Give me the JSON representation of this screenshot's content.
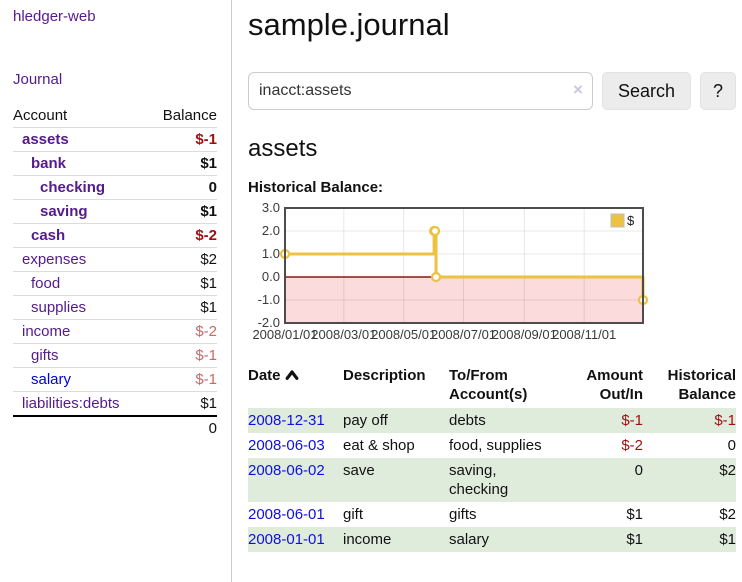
{
  "app": {
    "brand": "hledger-web",
    "nav_journal": "Journal"
  },
  "colors": {
    "link_purple": "#551a8b",
    "link_blue": "#0000e0",
    "negative_strong": "#9d0f0f",
    "negative_soft": "#c36b6b",
    "row_shade_green": "#dfecdc",
    "accent_gold": "#edc240"
  },
  "sidebar": {
    "header": {
      "account": "Account",
      "balance": "Balance"
    },
    "accounts": [
      {
        "name": "assets",
        "depth": 0,
        "balance": "$-1",
        "bold": true,
        "balance_class": "neg-strong",
        "link_class": "purple"
      },
      {
        "name": "bank",
        "depth": 1,
        "balance": "$1",
        "bold": true,
        "balance_class": "pos",
        "link_class": "purple"
      },
      {
        "name": "checking",
        "depth": 2,
        "balance": "0",
        "bold": true,
        "balance_class": "pos",
        "link_class": "purple"
      },
      {
        "name": "saving",
        "depth": 2,
        "balance": "$1",
        "bold": true,
        "balance_class": "pos",
        "link_class": "purple"
      },
      {
        "name": "cash",
        "depth": 1,
        "balance": "$-2",
        "bold": true,
        "balance_class": "neg-strong",
        "link_class": "purple"
      },
      {
        "name": "expenses",
        "depth": 0,
        "balance": "$2",
        "bold": false,
        "balance_class": "pos",
        "link_class": "purple"
      },
      {
        "name": "food",
        "depth": 1,
        "balance": "$1",
        "bold": false,
        "balance_class": "pos",
        "link_class": "purple"
      },
      {
        "name": "supplies",
        "depth": 1,
        "balance": "$1",
        "bold": false,
        "balance_class": "pos",
        "link_class": "purple"
      },
      {
        "name": "income",
        "depth": 0,
        "balance": "$-2",
        "bold": false,
        "balance_class": "neg-soft",
        "link_class": "purple"
      },
      {
        "name": "gifts",
        "depth": 1,
        "balance": "$-1",
        "bold": false,
        "balance_class": "neg-soft",
        "link_class": "purple"
      },
      {
        "name": "salary",
        "depth": 1,
        "balance": "$-1",
        "bold": false,
        "balance_class": "neg-soft",
        "link_class": "blue"
      },
      {
        "name": "liabilities:debts",
        "depth": 0,
        "balance": "$1",
        "bold": false,
        "balance_class": "pos",
        "link_class": "purple"
      }
    ],
    "total": "0"
  },
  "main": {
    "title": "sample.journal",
    "search": {
      "value": "inacct:assets",
      "clear_icon": "×",
      "button": "Search",
      "help": "?"
    },
    "account_heading": "assets",
    "chart_label": "Historical Balance:"
  },
  "chart_data": {
    "type": "line",
    "step": true,
    "title": "Historical Balance",
    "xlabel": "",
    "ylabel": "",
    "xlim": [
      0,
      365
    ],
    "ylim": [
      -2,
      3
    ],
    "grid": true,
    "legend_position": "top-right",
    "series": [
      {
        "name": "$",
        "color": "#edc240",
        "points": [
          {
            "date": "2008-01-01",
            "day": 0,
            "value": 1
          },
          {
            "date": "2008-06-01",
            "day": 152,
            "value": 2
          },
          {
            "date": "2008-06-02",
            "day": 153,
            "value": 2
          },
          {
            "date": "2008-06-03",
            "day": 154,
            "value": 0
          },
          {
            "date": "2008-12-31",
            "day": 365,
            "value": -1
          }
        ]
      }
    ],
    "xticks": [
      {
        "day": 0,
        "label": "2008/01/01"
      },
      {
        "day": 60,
        "label": "2008/03/01"
      },
      {
        "day": 121,
        "label": "2008/05/01"
      },
      {
        "day": 182,
        "label": "2008/07/01"
      },
      {
        "day": 244,
        "label": "2008/09/01"
      },
      {
        "day": 305,
        "label": "2008/11/01"
      }
    ],
    "yticks": [
      {
        "value": 3,
        "label": "3.0"
      },
      {
        "value": 2,
        "label": "2.0"
      },
      {
        "value": 1,
        "label": "1.0"
      },
      {
        "value": 0,
        "label": "0.0"
      },
      {
        "value": -1,
        "label": "-1.0"
      },
      {
        "value": -2,
        "label": "-2.0"
      }
    ],
    "negative_region_fill": "#fbdbdb",
    "zero_line_color": "#8f1414",
    "grid_color": "rgba(0,0,0,0.09)",
    "border_color": "#4c4c4c",
    "marker_fill": "#ffffff",
    "legend": {
      "label": "$"
    }
  },
  "register": {
    "headers": {
      "date": "Date",
      "description": "Description",
      "accounts": "To/From Account(s)",
      "amount": "Amount Out/In",
      "balance": "Historical Balance"
    },
    "rows": [
      {
        "date": "2008-12-31",
        "description": "pay off",
        "accounts": "debts",
        "amount": "$-1",
        "amount_negative": true,
        "balance": "$-1",
        "balance_negative": true,
        "shaded": true
      },
      {
        "date": "2008-06-03",
        "description": "eat & shop",
        "accounts": "food, supplies",
        "amount": "$-2",
        "amount_negative": true,
        "balance": "0",
        "balance_negative": false,
        "shaded": false
      },
      {
        "date": "2008-06-02",
        "description": "save",
        "accounts": "saving, checking",
        "amount": "0",
        "amount_negative": false,
        "balance": "$2",
        "balance_negative": false,
        "shaded": true
      },
      {
        "date": "2008-06-01",
        "description": "gift",
        "accounts": "gifts",
        "amount": "$1",
        "amount_negative": false,
        "balance": "$2",
        "balance_negative": false,
        "shaded": false
      },
      {
        "date": "2008-01-01",
        "description": "income",
        "accounts": "salary",
        "amount": "$1",
        "amount_negative": false,
        "balance": "$1",
        "balance_negative": false,
        "shaded": true
      }
    ]
  }
}
